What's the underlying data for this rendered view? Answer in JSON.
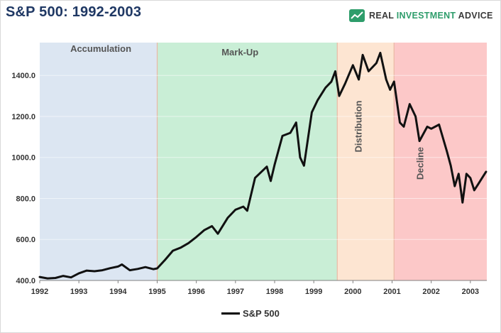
{
  "header": {
    "title": "S&P 500: 1992-2003",
    "brand": {
      "part1": "REAL ",
      "part2": "INVESTMENT",
      "part3": " ADVICE",
      "icon": "chart-logo-icon",
      "accent_color": "#2e9d6b"
    }
  },
  "chart_data": {
    "type": "line",
    "title": "S&P 500: 1992-2003",
    "xlabel": "",
    "ylabel": "",
    "xlim": [
      1992.0,
      2003.42
    ],
    "ylim": [
      400,
      1560
    ],
    "grid": {
      "x": false,
      "y": true
    },
    "x_ticks": [
      "1992",
      "1993",
      "1994",
      "1995",
      "1996",
      "1997",
      "1998",
      "1999",
      "2000",
      "2001",
      "2002",
      "2003"
    ],
    "y_ticks": [
      "400.0",
      "600.0",
      "800.0",
      "1000.0",
      "1200.0",
      "1400.0"
    ],
    "legend": {
      "position": "bottom-center",
      "entries": [
        "S&P 500"
      ]
    },
    "phases": [
      {
        "label": "Accumulation",
        "start": 1992.0,
        "end": 1995.0,
        "color": "#dce6f2",
        "label_orientation": "horizontal"
      },
      {
        "label": "Mark-Up",
        "start": 1995.0,
        "end": 1999.6,
        "color": "#c9eed6",
        "label_orientation": "horizontal"
      },
      {
        "label": "Distribution",
        "start": 1999.6,
        "end": 2001.05,
        "color": "#fde5d2",
        "label_orientation": "vertical"
      },
      {
        "label": "Decline",
        "start": 2001.05,
        "end": 2003.42,
        "color": "#fcc8c8",
        "label_orientation": "vertical"
      }
    ],
    "series": [
      {
        "name": "S&P 500",
        "color": "#111111",
        "points": [
          [
            1992.0,
            417
          ],
          [
            1992.2,
            410
          ],
          [
            1992.4,
            412
          ],
          [
            1992.6,
            422
          ],
          [
            1992.8,
            415
          ],
          [
            1993.0,
            435
          ],
          [
            1993.2,
            448
          ],
          [
            1993.4,
            445
          ],
          [
            1993.6,
            450
          ],
          [
            1993.8,
            460
          ],
          [
            1994.0,
            468
          ],
          [
            1994.1,
            478
          ],
          [
            1994.3,
            450
          ],
          [
            1994.5,
            456
          ],
          [
            1994.7,
            465
          ],
          [
            1994.9,
            455
          ],
          [
            1995.0,
            459
          ],
          [
            1995.2,
            500
          ],
          [
            1995.4,
            545
          ],
          [
            1995.6,
            560
          ],
          [
            1995.8,
            582
          ],
          [
            1996.0,
            612
          ],
          [
            1996.2,
            645
          ],
          [
            1996.4,
            665
          ],
          [
            1996.55,
            628
          ],
          [
            1996.8,
            705
          ],
          [
            1997.0,
            745
          ],
          [
            1997.2,
            760
          ],
          [
            1997.3,
            740
          ],
          [
            1997.5,
            900
          ],
          [
            1997.8,
            955
          ],
          [
            1997.9,
            885
          ],
          [
            1998.0,
            965
          ],
          [
            1998.2,
            1105
          ],
          [
            1998.4,
            1120
          ],
          [
            1998.55,
            1170
          ],
          [
            1998.65,
            1000
          ],
          [
            1998.75,
            960
          ],
          [
            1998.95,
            1220
          ],
          [
            1999.1,
            1280
          ],
          [
            1999.3,
            1340
          ],
          [
            1999.45,
            1370
          ],
          [
            1999.55,
            1420
          ],
          [
            1999.65,
            1300
          ],
          [
            1999.8,
            1360
          ],
          [
            2000.0,
            1450
          ],
          [
            2000.15,
            1380
          ],
          [
            2000.25,
            1500
          ],
          [
            2000.4,
            1420
          ],
          [
            2000.6,
            1460
          ],
          [
            2000.7,
            1510
          ],
          [
            2000.85,
            1380
          ],
          [
            2000.95,
            1330
          ],
          [
            2001.05,
            1370
          ],
          [
            2001.2,
            1170
          ],
          [
            2001.3,
            1150
          ],
          [
            2001.45,
            1260
          ],
          [
            2001.6,
            1200
          ],
          [
            2001.7,
            1080
          ],
          [
            2001.9,
            1150
          ],
          [
            2002.0,
            1140
          ],
          [
            2002.2,
            1160
          ],
          [
            2002.4,
            1030
          ],
          [
            2002.5,
            960
          ],
          [
            2002.6,
            860
          ],
          [
            2002.7,
            920
          ],
          [
            2002.8,
            780
          ],
          [
            2002.9,
            920
          ],
          [
            2003.0,
            900
          ],
          [
            2003.1,
            840
          ],
          [
            2003.2,
            870
          ],
          [
            2003.3,
            900
          ],
          [
            2003.4,
            930
          ]
        ]
      }
    ]
  }
}
